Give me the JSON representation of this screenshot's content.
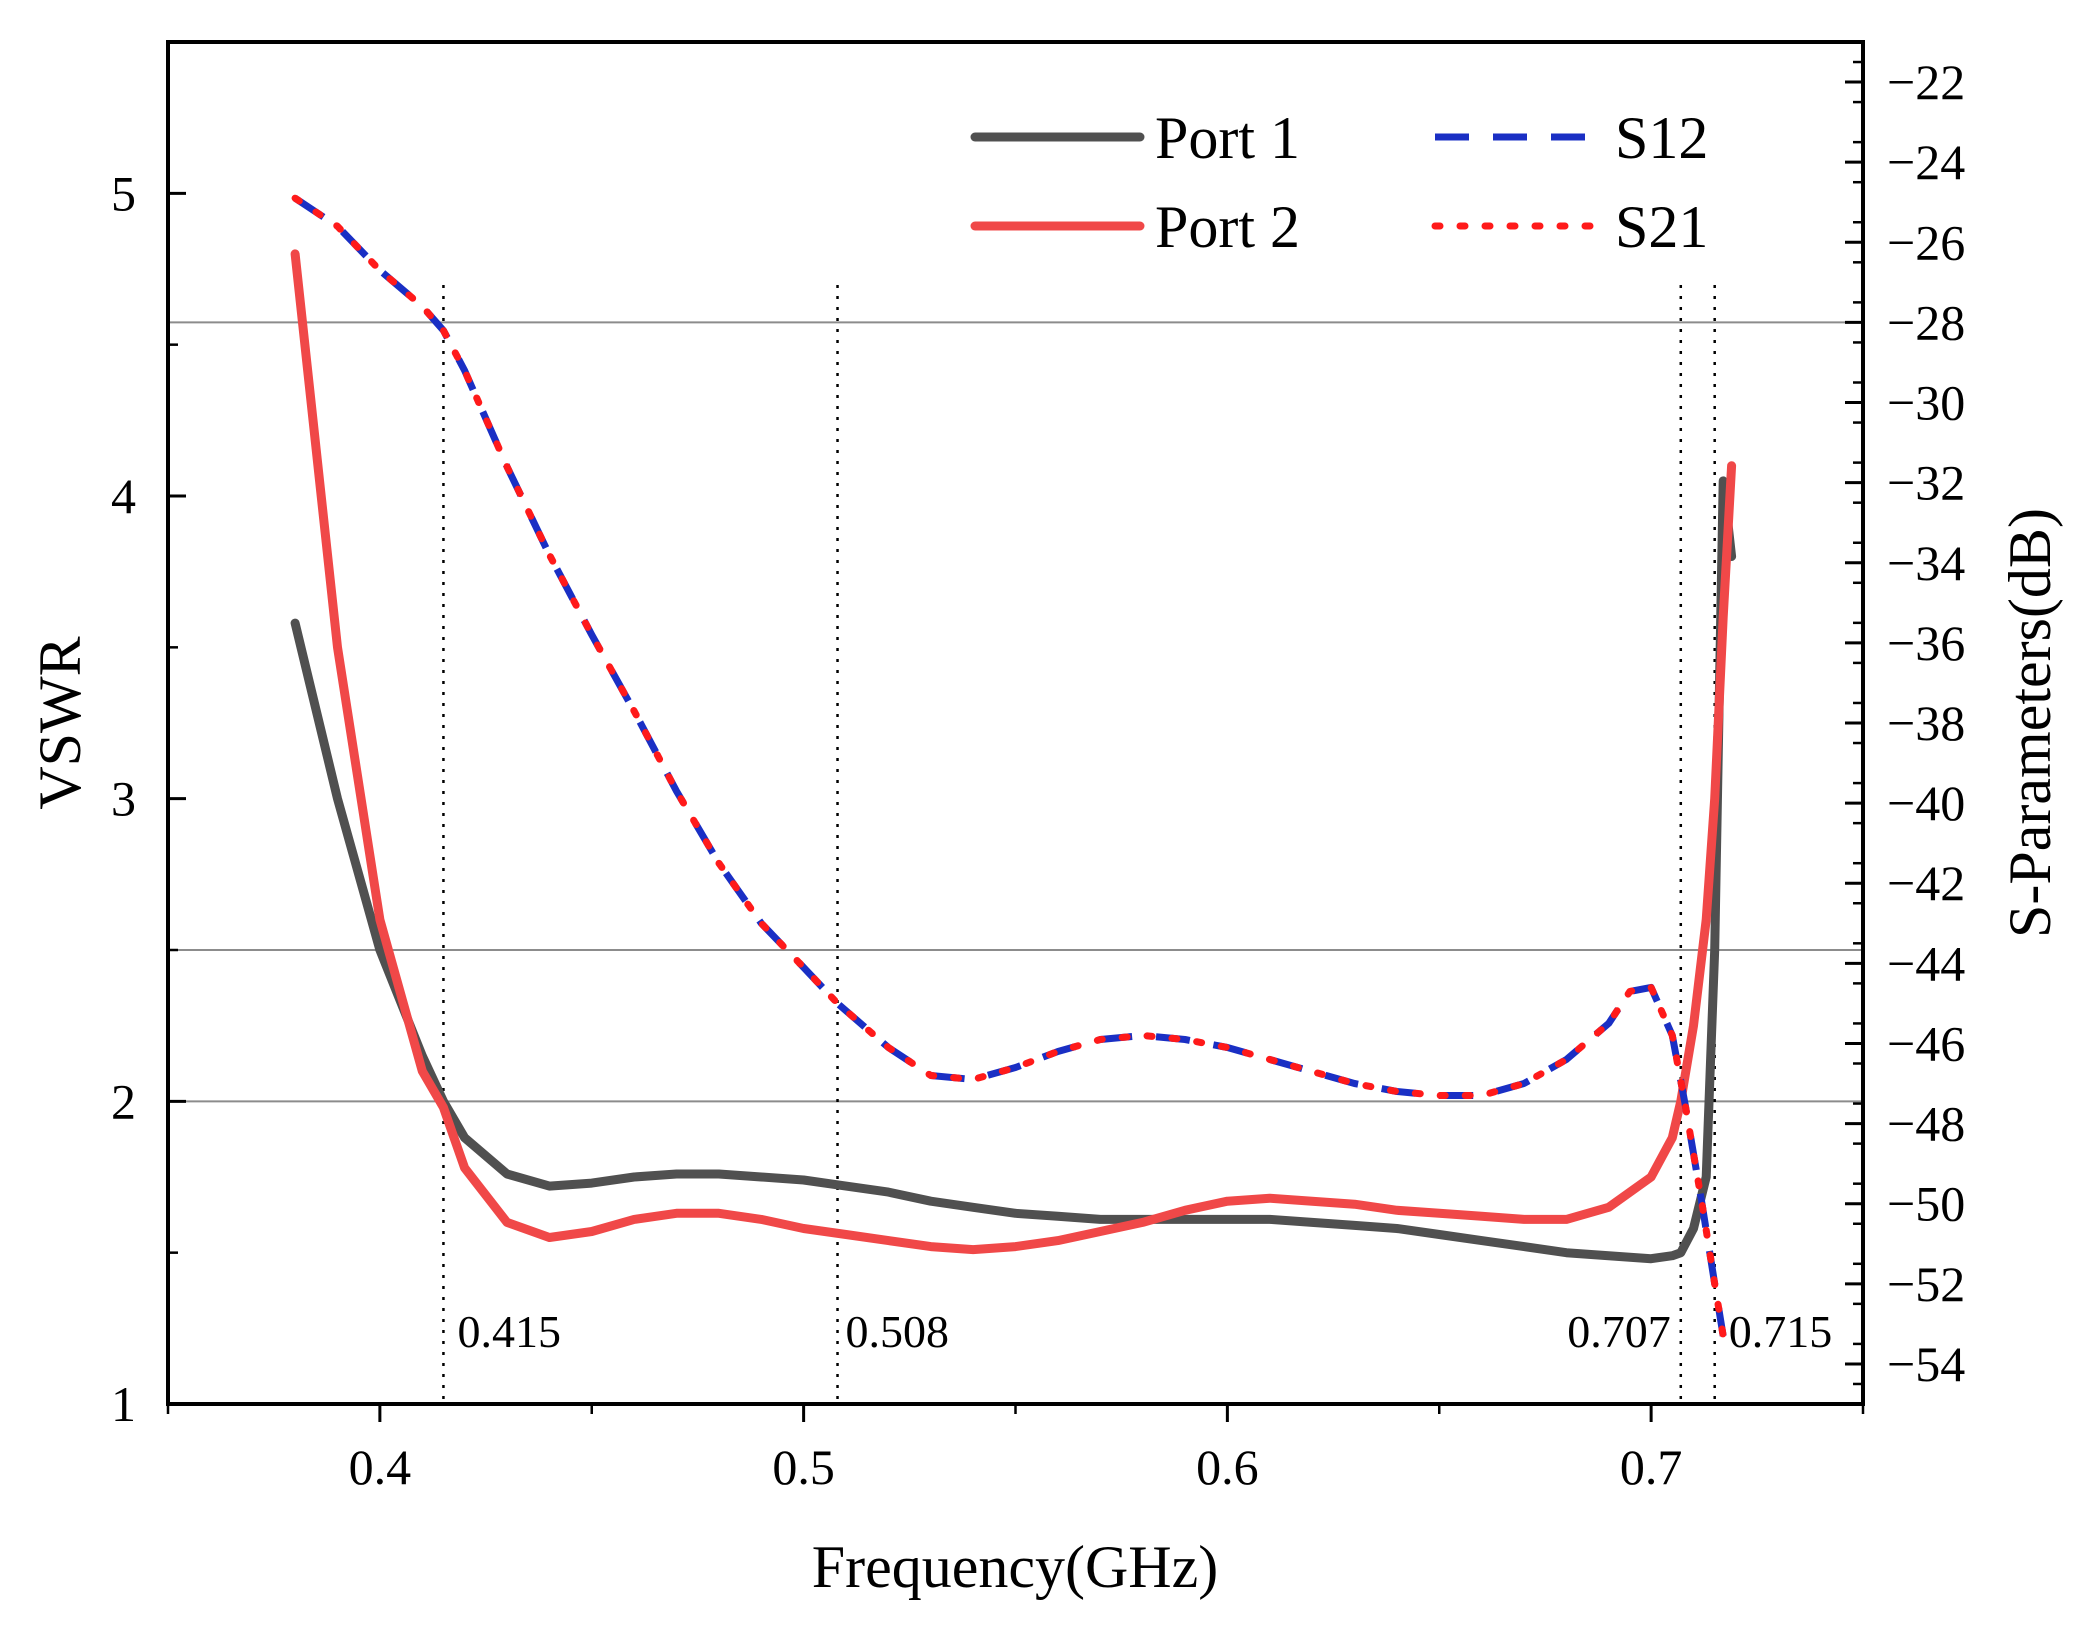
{
  "chart_data": {
    "type": "line",
    "xlabel": "Frequency(GHz)",
    "ylabel_left": "VSWR",
    "ylabel_right": "S-Parameters(dB)",
    "xlim": [
      0.35,
      0.75
    ],
    "ylim_left": [
      1,
      5.5
    ],
    "ylim_right": [
      -55,
      -21
    ],
    "x_ticks": [
      0.4,
      0.5,
      0.6,
      0.7
    ],
    "x_tick_labels": [
      "0.4",
      "0.5",
      "0.6",
      "0.7"
    ],
    "y_left_ticks": [
      1,
      2,
      3,
      4,
      5
    ],
    "y_left_tick_labels": [
      "1",
      "2",
      "3",
      "4",
      "5"
    ],
    "y_right_ticks": [
      -54,
      -52,
      -50,
      -48,
      -46,
      -44,
      -42,
      -40,
      -38,
      -36,
      -34,
      -32,
      -30,
      -28,
      -26,
      -24,
      -22
    ],
    "y_right_tick_labels": [
      "−54",
      "−52",
      "−50",
      "−48",
      "−46",
      "−44",
      "−42",
      "−40",
      "−38",
      "−36",
      "−34",
      "−32",
      "−30",
      "−28",
      "−26",
      "−24",
      "−22"
    ],
    "reference_lines_left": [
      2,
      2.5
    ],
    "reference_lines_right": [
      -28
    ],
    "markers": [
      {
        "x": 0.415,
        "label": "0.415"
      },
      {
        "x": 0.508,
        "label": "0.508"
      },
      {
        "x": 0.707,
        "label": "0.707"
      },
      {
        "x": 0.715,
        "label": "0.715"
      }
    ],
    "legend_position": "top-right",
    "series": [
      {
        "name": "Port 1",
        "axis": "left",
        "style": "solid",
        "color": "#505050",
        "x": [
          0.38,
          0.39,
          0.4,
          0.41,
          0.415,
          0.42,
          0.43,
          0.44,
          0.45,
          0.46,
          0.47,
          0.48,
          0.49,
          0.5,
          0.51,
          0.52,
          0.53,
          0.54,
          0.55,
          0.56,
          0.57,
          0.58,
          0.59,
          0.6,
          0.61,
          0.62,
          0.63,
          0.64,
          0.65,
          0.66,
          0.67,
          0.68,
          0.69,
          0.7,
          0.705,
          0.707,
          0.71,
          0.713,
          0.715,
          0.717,
          0.719
        ],
        "y": [
          3.58,
          3.0,
          2.5,
          2.15,
          2.0,
          1.88,
          1.76,
          1.72,
          1.73,
          1.75,
          1.76,
          1.76,
          1.75,
          1.74,
          1.72,
          1.7,
          1.67,
          1.65,
          1.63,
          1.62,
          1.61,
          1.61,
          1.61,
          1.61,
          1.61,
          1.6,
          1.59,
          1.58,
          1.56,
          1.54,
          1.52,
          1.5,
          1.49,
          1.48,
          1.49,
          1.5,
          1.58,
          1.75,
          2.5,
          4.05,
          3.8
        ]
      },
      {
        "name": "Port 2",
        "axis": "left",
        "style": "solid",
        "color": "#f04848",
        "x": [
          0.38,
          0.39,
          0.4,
          0.41,
          0.415,
          0.42,
          0.43,
          0.44,
          0.45,
          0.46,
          0.47,
          0.48,
          0.49,
          0.5,
          0.51,
          0.52,
          0.53,
          0.54,
          0.55,
          0.56,
          0.57,
          0.58,
          0.59,
          0.6,
          0.61,
          0.62,
          0.63,
          0.64,
          0.65,
          0.66,
          0.67,
          0.68,
          0.69,
          0.7,
          0.705,
          0.707,
          0.71,
          0.713,
          0.715,
          0.717,
          0.719
        ],
        "y": [
          4.8,
          3.5,
          2.6,
          2.1,
          1.98,
          1.78,
          1.6,
          1.55,
          1.57,
          1.61,
          1.63,
          1.63,
          1.61,
          1.58,
          1.56,
          1.54,
          1.52,
          1.51,
          1.52,
          1.54,
          1.57,
          1.6,
          1.64,
          1.67,
          1.68,
          1.67,
          1.66,
          1.64,
          1.63,
          1.62,
          1.61,
          1.61,
          1.65,
          1.75,
          1.88,
          2.0,
          2.25,
          2.6,
          3.0,
          3.6,
          4.1
        ]
      },
      {
        "name": "S12",
        "axis": "right",
        "style": "dashed",
        "color": "#1a2fc4",
        "x": [
          0.38,
          0.39,
          0.4,
          0.41,
          0.415,
          0.42,
          0.43,
          0.44,
          0.45,
          0.46,
          0.47,
          0.48,
          0.49,
          0.5,
          0.508,
          0.52,
          0.53,
          0.54,
          0.55,
          0.56,
          0.57,
          0.58,
          0.59,
          0.6,
          0.61,
          0.62,
          0.63,
          0.64,
          0.65,
          0.66,
          0.67,
          0.68,
          0.69,
          0.695,
          0.7,
          0.705,
          0.708,
          0.712,
          0.715,
          0.717
        ],
        "y": [
          -24.9,
          -25.6,
          -26.7,
          -27.6,
          -28.2,
          -29.2,
          -31.6,
          -33.8,
          -35.8,
          -37.7,
          -39.7,
          -41.5,
          -43.0,
          -44.1,
          -45.0,
          -46.1,
          -46.8,
          -46.9,
          -46.6,
          -46.2,
          -45.9,
          -45.8,
          -45.9,
          -46.1,
          -46.4,
          -46.7,
          -47.0,
          -47.2,
          -47.3,
          -47.3,
          -47.0,
          -46.4,
          -45.5,
          -44.7,
          -44.6,
          -45.8,
          -47.5,
          -50.0,
          -52.0,
          -53.3
        ]
      },
      {
        "name": "S21",
        "axis": "right",
        "style": "dotted",
        "color": "#ff1a1a",
        "x": [
          0.38,
          0.39,
          0.4,
          0.41,
          0.415,
          0.42,
          0.43,
          0.44,
          0.45,
          0.46,
          0.47,
          0.48,
          0.49,
          0.5,
          0.508,
          0.52,
          0.53,
          0.54,
          0.55,
          0.56,
          0.57,
          0.58,
          0.59,
          0.6,
          0.61,
          0.62,
          0.63,
          0.64,
          0.65,
          0.66,
          0.67,
          0.68,
          0.69,
          0.695,
          0.7,
          0.705,
          0.708,
          0.712,
          0.715,
          0.717
        ],
        "y": [
          -24.9,
          -25.6,
          -26.7,
          -27.6,
          -28.2,
          -29.2,
          -31.6,
          -33.8,
          -35.8,
          -37.7,
          -39.7,
          -41.5,
          -43.0,
          -44.1,
          -45.0,
          -46.1,
          -46.8,
          -46.9,
          -46.6,
          -46.2,
          -45.9,
          -45.8,
          -45.9,
          -46.1,
          -46.4,
          -46.7,
          -47.0,
          -47.2,
          -47.3,
          -47.3,
          -47.0,
          -46.4,
          -45.5,
          -44.7,
          -44.6,
          -45.8,
          -47.5,
          -50.0,
          -52.0,
          -53.3
        ]
      }
    ]
  }
}
